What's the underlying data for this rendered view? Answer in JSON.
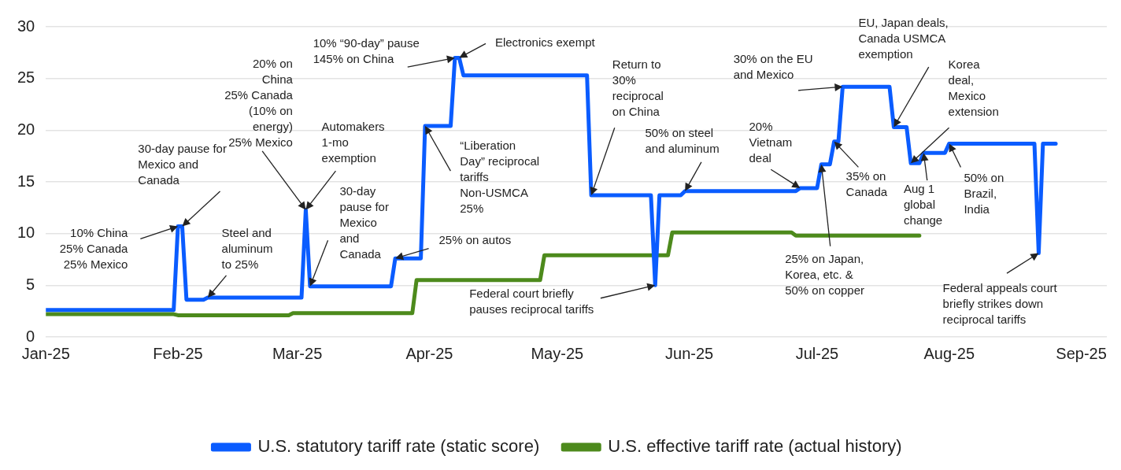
{
  "chart_data": {
    "type": "line",
    "xlim": [
      "2025-01-01",
      "2025-09-07"
    ],
    "ylim": [
      0,
      30
    ],
    "xticks": [
      {
        "value": "2025-01-01",
        "label": "Jan-25"
      },
      {
        "value": "2025-02-01",
        "label": "Feb-25"
      },
      {
        "value": "2025-03-01",
        "label": "Mar-25"
      },
      {
        "value": "2025-04-01",
        "label": "Apr-25"
      },
      {
        "value": "2025-05-01",
        "label": "May-25"
      },
      {
        "value": "2025-06-01",
        "label": "Jun-25"
      },
      {
        "value": "2025-07-01",
        "label": "Jul-25"
      },
      {
        "value": "2025-08-01",
        "label": "Aug-25"
      },
      {
        "value": "2025-09-01",
        "label": "Sep-25"
      }
    ],
    "yticks": [
      0,
      5,
      10,
      15,
      20,
      25,
      30
    ],
    "grid": "y",
    "legend": "bottom",
    "marker": "none",
    "line_style": "solid",
    "series": [
      {
        "name": "U.S. statutory tariff rate (static score)",
        "color": "#0a5cff",
        "x": [
          "2025-01-01",
          "2025-01-31",
          "2025-02-01",
          "2025-02-02",
          "2025-02-03",
          "2025-02-07",
          "2025-02-08",
          "2025-03-02",
          "2025-03-03",
          "2025-03-04",
          "2025-03-23",
          "2025-03-24",
          "2025-03-30",
          "2025-03-31",
          "2025-04-06",
          "2025-04-07",
          "2025-04-08",
          "2025-04-09",
          "2025-05-08",
          "2025-05-09",
          "2025-05-23",
          "2025-05-24",
          "2025-05-25",
          "2025-05-30",
          "2025-05-31",
          "2025-06-26",
          "2025-06-27",
          "2025-07-01",
          "2025-07-02",
          "2025-07-04",
          "2025-07-05",
          "2025-07-06",
          "2025-07-07",
          "2025-07-18",
          "2025-07-19",
          "2025-07-22",
          "2025-07-23",
          "2025-07-25",
          "2025-07-26",
          "2025-07-31",
          "2025-08-01",
          "2025-08-21",
          "2025-08-22",
          "2025-08-23",
          "2025-08-26"
        ],
        "values": [
          2.6,
          2.6,
          10.7,
          10.7,
          3.6,
          3.6,
          3.8,
          3.8,
          12.3,
          4.9,
          4.9,
          7.6,
          7.6,
          20.4,
          20.4,
          27.0,
          27.0,
          25.3,
          25.3,
          13.7,
          13.7,
          5.0,
          13.7,
          13.7,
          14.1,
          14.1,
          14.4,
          14.4,
          16.7,
          16.7,
          18.9,
          18.9,
          24.2,
          24.2,
          20.3,
          20.3,
          16.8,
          16.8,
          17.8,
          17.8,
          18.7,
          18.7,
          8.1,
          18.7,
          18.7
        ]
      },
      {
        "name": "U.S. effective tariff rate (actual history)",
        "color": "#4d8a1c",
        "x": [
          "2025-01-01",
          "2025-01-31",
          "2025-02-01",
          "2025-02-27",
          "2025-02-28",
          "2025-03-28",
          "2025-03-29",
          "2025-04-27",
          "2025-04-28",
          "2025-05-27",
          "2025-05-28",
          "2025-06-25",
          "2025-06-26",
          "2025-07-25"
        ],
        "values": [
          2.2,
          2.2,
          2.1,
          2.1,
          2.3,
          2.3,
          5.5,
          5.5,
          7.9,
          7.9,
          10.1,
          10.1,
          9.8,
          9.8
        ]
      }
    ],
    "annotations": [
      {
        "text": "10% China\n25% Canada\n25% Mexico",
        "x": "2025-02-01",
        "y": 10.7
      },
      {
        "text": "30-day pause for\nMexico and\nCanada",
        "x": "2025-02-02",
        "y": 10.7
      },
      {
        "text": "Steel and\naluminum\nto 25%",
        "x": "2025-02-08",
        "y": 3.8
      },
      {
        "text": "20% on\nChina\n25% Canada\n(10% on\nenergy)\n25% Mexico",
        "x": "2025-03-03",
        "y": 12.3
      },
      {
        "text": "Automakers\n1-mo\nexemption",
        "x": "2025-03-03",
        "y": 12.3
      },
      {
        "text": "30-day\npause for\nMexico\nand\nCanada",
        "x": "2025-03-04",
        "y": 4.9
      },
      {
        "text": "10% “90-day” pause\n145% on China",
        "x": "2025-04-07",
        "y": 27.0
      },
      {
        "text": "Electronics exempt",
        "x": "2025-04-08",
        "y": 27.0
      },
      {
        "text": "“Liberation\nDay” reciprocal\ntariffs\nNon-USMCA\n25%",
        "x": "2025-03-31",
        "y": 20.4
      },
      {
        "text": "25% on autos",
        "x": "2025-03-24",
        "y": 7.6
      },
      {
        "text": "Return to\n30%\nreciprocal\non China",
        "x": "2025-05-09",
        "y": 13.7
      },
      {
        "text": "Federal court briefly\npauses reciprocal tariffs",
        "x": "2025-05-24",
        "y": 5.0
      },
      {
        "text": "50% on steel\nand aluminum",
        "x": "2025-05-31",
        "y": 14.1
      },
      {
        "text": "20%\nVietnam\ndeal",
        "x": "2025-06-27",
        "y": 14.4
      },
      {
        "text": "30% on the EU\nand Mexico",
        "x": "2025-07-07",
        "y": 24.2
      },
      {
        "text": "25% on Japan,\nKorea, etc. &\n50% on copper",
        "x": "2025-07-02",
        "y": 16.7
      },
      {
        "text": "35% on\nCanada",
        "x": "2025-07-05",
        "y": 18.9
      },
      {
        "text": "EU, Japan deals,\nCanada USMCA\nexemption",
        "x": "2025-07-19",
        "y": 20.3
      },
      {
        "text": "Korea\ndeal,\nMexico\nextension",
        "x": "2025-07-23",
        "y": 16.8
      },
      {
        "text": "Aug 1\nglobal\nchange",
        "x": "2025-07-26",
        "y": 17.8
      },
      {
        "text": "50% on\nBrazil,\nIndia",
        "x": "2025-08-01",
        "y": 18.7
      },
      {
        "text": "Federal appeals court\nbriefly strikes down\nreciprocal tariffs",
        "x": "2025-08-22",
        "y": 8.1
      }
    ]
  }
}
